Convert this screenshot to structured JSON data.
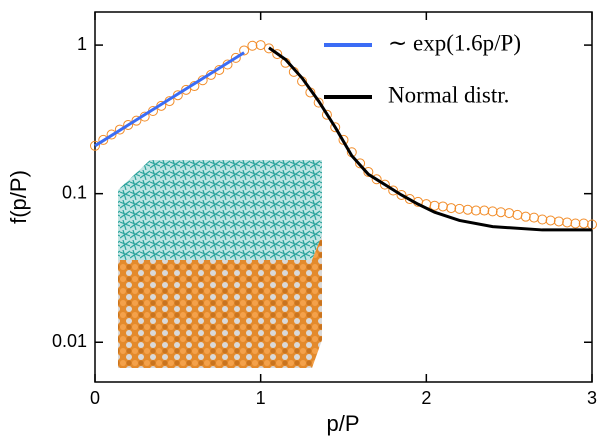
{
  "chart_data": {
    "type": "scatter",
    "x_label": "p/P",
    "y_label": "f(p/P)",
    "xlim": [
      0,
      3
    ],
    "xticks": [
      0,
      1,
      2,
      3
    ],
    "ylim": [
      0.0054,
      1.67
    ],
    "yticks": [
      0.01,
      0.1,
      1
    ],
    "yscale": "log",
    "legend": "upper right",
    "series": [
      {
        "type": "scatter",
        "color": "#f28c28",
        "x": [
          0,
          0.05,
          0.1,
          0.15,
          0.2,
          0.25,
          0.3,
          0.35,
          0.4,
          0.45,
          0.5,
          0.55,
          0.6,
          0.65,
          0.7,
          0.75,
          0.8,
          0.85,
          0.9,
          0.95,
          1.0,
          1.05,
          1.1,
          1.15,
          1.2,
          1.25,
          1.3,
          1.35,
          1.4,
          1.45,
          1.5,
          1.55,
          1.6,
          1.65,
          1.7,
          1.75,
          1.8,
          1.85,
          1.9,
          1.95,
          2.0,
          2.05,
          2.1,
          2.15,
          2.2,
          2.25,
          2.3,
          2.35,
          2.4,
          2.45,
          2.5,
          2.55,
          2.6,
          2.65,
          2.7,
          2.75,
          2.8,
          2.85,
          2.9,
          2.95,
          3.0
        ],
        "values": [
          0.21,
          0.23,
          0.25,
          0.27,
          0.29,
          0.31,
          0.33,
          0.36,
          0.39,
          0.42,
          0.46,
          0.5,
          0.53,
          0.58,
          0.63,
          0.68,
          0.74,
          0.82,
          0.92,
          0.99,
          1.0,
          0.95,
          0.87,
          0.76,
          0.66,
          0.57,
          0.48,
          0.41,
          0.34,
          0.28,
          0.23,
          0.19,
          0.16,
          0.14,
          0.125,
          0.115,
          0.105,
          0.098,
          0.092,
          0.088,
          0.085,
          0.083,
          0.082,
          0.08,
          0.079,
          0.078,
          0.077,
          0.077,
          0.076,
          0.075,
          0.074,
          0.072,
          0.07,
          0.069,
          0.067,
          0.066,
          0.065,
          0.064,
          0.063,
          0.063,
          0.062
        ]
      },
      {
        "type": "line",
        "name": "∼ exp(1.6p/P)",
        "color": "#3b6cf5",
        "x": [
          0,
          0.9
        ],
        "values": [
          0.21,
          0.89
        ]
      },
      {
        "type": "line",
        "name": "Normal distr.",
        "color": "#000000",
        "x": [
          1.05,
          1.15,
          1.25,
          1.35,
          1.45,
          1.55,
          1.65,
          1.75,
          1.85,
          1.95,
          2.05,
          2.2,
          2.4,
          2.7,
          3.0
        ],
        "values": [
          0.96,
          0.8,
          0.6,
          0.42,
          0.28,
          0.18,
          0.135,
          0.115,
          0.098,
          0.085,
          0.075,
          0.066,
          0.06,
          0.057,
          0.057
        ]
      }
    ]
  }
}
